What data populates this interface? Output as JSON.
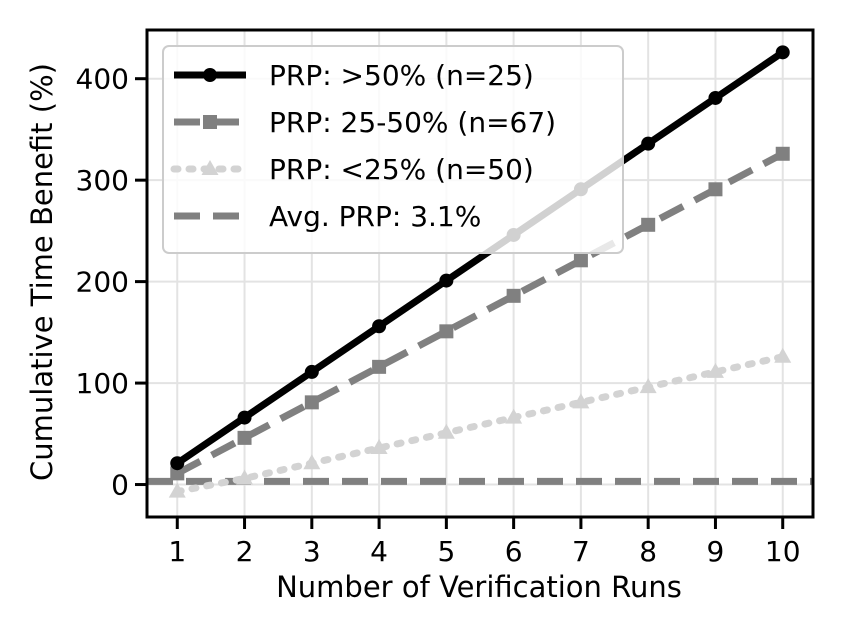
{
  "chart_data": {
    "type": "line",
    "title": "",
    "xlabel": "Number of Verification Runs",
    "ylabel": "Cumulative Time Benefit (%)",
    "xlim": [
      0.55,
      10.45
    ],
    "ylim": [
      -32,
      448
    ],
    "x_ticks": [
      1,
      2,
      3,
      4,
      5,
      6,
      7,
      8,
      9,
      10
    ],
    "y_ticks": [
      0,
      100,
      200,
      300,
      400
    ],
    "grid": true,
    "legend_position": "upper-left",
    "x": [
      1,
      2,
      3,
      4,
      5,
      6,
      7,
      8,
      9,
      10
    ],
    "series": [
      {
        "name": "PRP: >50% (n=25)",
        "color": "#000000",
        "style": "solid",
        "marker": "circle",
        "values": [
          21,
          66,
          111,
          156,
          201,
          246,
          291,
          336,
          381,
          426
        ]
      },
      {
        "name": "PRP: 25-50% (n=67)",
        "color": "#808080",
        "style": "dashed",
        "marker": "square",
        "values": [
          11,
          46,
          81,
          116,
          151,
          186,
          221,
          256,
          291,
          326
        ]
      },
      {
        "name": "PRP: <25% (n=50)",
        "color": "#d3d3d3",
        "style": "dotted",
        "marker": "triangle",
        "values": [
          -7,
          6,
          21,
          36,
          51,
          66,
          81,
          96,
          111,
          126
        ]
      }
    ],
    "reference_lines": [
      {
        "name": "Avg. PRP: 3.1%",
        "color": "#808080",
        "style": "dashed",
        "y": 3.1
      }
    ]
  }
}
